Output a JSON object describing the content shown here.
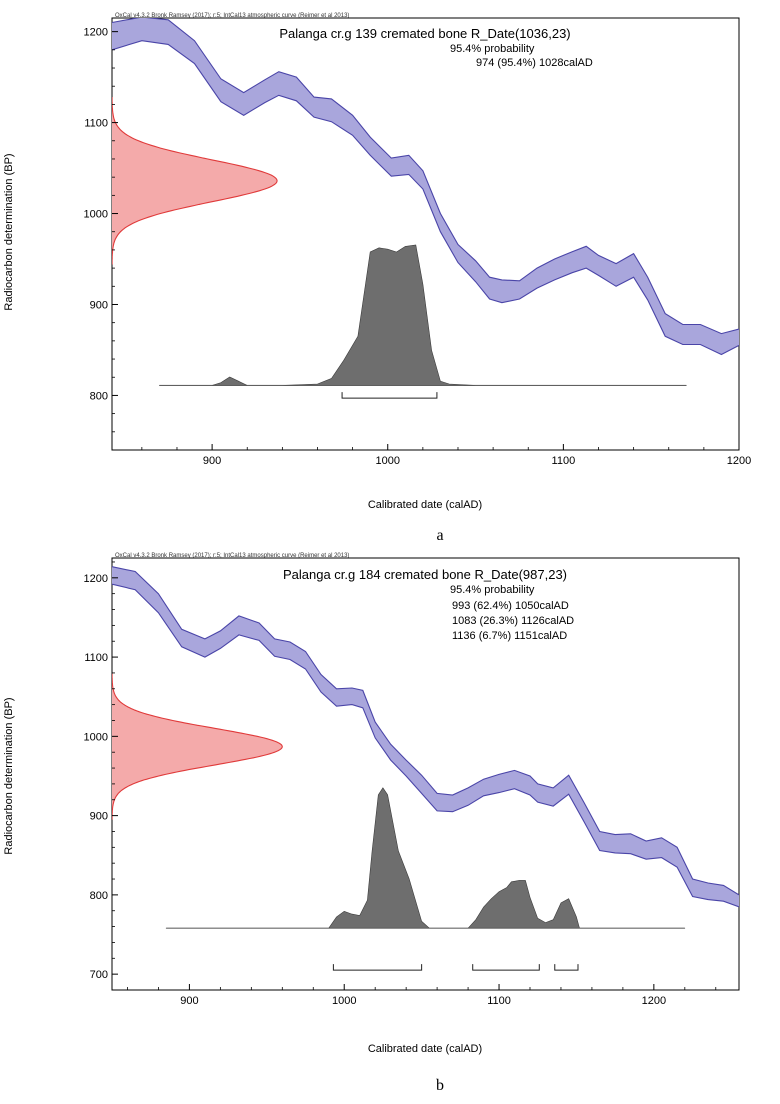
{
  "colors": {
    "curve_fill": "#a9a6dc",
    "curve_edge": "#4a45a8",
    "prior_fill": "#f4aaaa",
    "prior_edge": "#e03a3a",
    "posterior_fill": "#6e6e6e",
    "posterior_edge": "#3c3c3c",
    "frame": "#000000"
  },
  "figure": {
    "xlabel": "Calibrated date (calAD)",
    "ylabel": "Radiocarbon determination (BP)"
  },
  "chart_data": [
    {
      "type": "area",
      "panel_letter": "a",
      "header": "OxCal v4.3.2 Bronk Ramsey (2017); r:5; IntCal13 atmospheric curve (Reimer et al 2013)",
      "title": "Palanga cr.g 139 cremated bone R_Date(1036,23)",
      "probability_label": "95.4% probability",
      "ranges_text": [
        "974 (95.4%) 1028calAD"
      ],
      "ranges": [
        {
          "from": 974,
          "to": 1028,
          "prob": 95.4
        }
      ],
      "xlim": [
        843,
        1200
      ],
      "ylim": [
        740,
        1215
      ],
      "xticks": [
        900,
        1000,
        1100,
        1200
      ],
      "yticks": [
        800,
        900,
        1000,
        1100,
        1200
      ],
      "xlabel": "Calibrated date (calAD)",
      "ylabel": "Radiocarbon determination (BP)",
      "calibration_curve": {
        "x": [
          843,
          860,
          875,
          890,
          905,
          918,
          930,
          938,
          948,
          958,
          968,
          980,
          990,
          1002,
          1012,
          1020,
          1030,
          1040,
          1050,
          1058,
          1065,
          1075,
          1085,
          1095,
          1105,
          1113,
          1120,
          1130,
          1140,
          1148,
          1158,
          1168,
          1178,
          1190,
          1200
        ],
        "upper": [
          1210,
          1216,
          1213,
          1190,
          1148,
          1133,
          1147,
          1156,
          1150,
          1128,
          1126,
          1108,
          1084,
          1061,
          1064,
          1047,
          1000,
          966,
          948,
          930,
          927,
          926,
          940,
          950,
          958,
          964,
          954,
          945,
          956,
          930,
          890,
          878,
          878,
          868,
          873
        ],
        "lower": [
          1180,
          1190,
          1186,
          1165,
          1123,
          1108,
          1122,
          1130,
          1124,
          1106,
          1101,
          1086,
          1064,
          1041,
          1043,
          1027,
          980,
          946,
          925,
          906,
          902,
          906,
          918,
          927,
          935,
          940,
          932,
          920,
          930,
          905,
          865,
          856,
          856,
          845,
          855
        ]
      },
      "prior": {
        "mean": 1036,
        "sd": 23,
        "peak_x": 937
      },
      "posterior": {
        "baseline_y": 811,
        "from": 870,
        "to": 1170,
        "x": [
          870,
          900,
          905,
          910,
          915,
          920,
          940,
          960,
          968,
          975,
          983,
          990,
          995,
          1000,
          1005,
          1010,
          1016,
          1020,
          1025,
          1030,
          1035,
          1050,
          1170
        ],
        "density": [
          0,
          0,
          0.02,
          0.06,
          0.03,
          0,
          0,
          0.01,
          0.05,
          0.18,
          0.35,
          0.95,
          0.98,
          0.97,
          0.95,
          0.99,
          1.0,
          0.72,
          0.25,
          0.03,
          0.01,
          0,
          0
        ]
      },
      "range_bracket_y": 797
    },
    {
      "type": "area",
      "panel_letter": "b",
      "header": "OxCal v4.3.2 Bronk Ramsey (2017); r:5; IntCal13 atmospheric curve (Reimer et al 2013)",
      "title": "Palanga cr.g 184 cremated bone R_Date(987,23)",
      "probability_label": "95.4% probability",
      "ranges_text": [
        "993 (62.4%) 1050calAD",
        "1083 (26.3%) 1126calAD",
        "1136 (6.7%) 1151calAD"
      ],
      "ranges": [
        {
          "from": 993,
          "to": 1050,
          "prob": 62.4
        },
        {
          "from": 1083,
          "to": 1126,
          "prob": 26.3
        },
        {
          "from": 1136,
          "to": 1151,
          "prob": 6.7
        }
      ],
      "xlim": [
        850,
        1255
      ],
      "ylim": [
        680,
        1225
      ],
      "xticks": [
        900,
        1000,
        1100,
        1200
      ],
      "yticks": [
        700,
        800,
        900,
        1000,
        1100,
        1200
      ],
      "xlabel": "Calibrated date (calAD)",
      "ylabel": "Radiocarbon determination (BP)",
      "calibration_curve": {
        "x": [
          850,
          865,
          880,
          895,
          910,
          920,
          932,
          945,
          955,
          965,
          975,
          985,
          995,
          1005,
          1012,
          1020,
          1030,
          1040,
          1050,
          1060,
          1070,
          1080,
          1090,
          1100,
          1110,
          1120,
          1125,
          1135,
          1145,
          1155,
          1165,
          1175,
          1185,
          1195,
          1205,
          1215,
          1225,
          1235,
          1245,
          1255
        ],
        "upper": [
          1214,
          1208,
          1180,
          1135,
          1123,
          1133,
          1152,
          1143,
          1123,
          1119,
          1107,
          1078,
          1060,
          1061,
          1058,
          1018,
          990,
          970,
          951,
          928,
          926,
          935,
          946,
          952,
          957,
          950,
          940,
          935,
          951,
          916,
          880,
          876,
          877,
          868,
          872,
          860,
          820,
          815,
          812,
          800
        ],
        "lower": [
          1192,
          1185,
          1156,
          1113,
          1100,
          1111,
          1128,
          1121,
          1101,
          1097,
          1085,
          1056,
          1038,
          1040,
          1036,
          998,
          970,
          950,
          928,
          906,
          905,
          913,
          925,
          929,
          934,
          926,
          917,
          912,
          927,
          892,
          856,
          853,
          852,
          845,
          847,
          835,
          798,
          794,
          792,
          785
        ]
      },
      "prior": {
        "mean": 987,
        "sd": 23,
        "peak_x": 960
      },
      "posterior": {
        "baseline_y": 758,
        "from": 885,
        "to": 1220,
        "x": [
          885,
          990,
          995,
          1000,
          1005,
          1010,
          1015,
          1018,
          1022,
          1025,
          1028,
          1035,
          1042,
          1050,
          1055,
          1080,
          1085,
          1090,
          1095,
          1100,
          1105,
          1108,
          1113,
          1117,
          1120,
          1125,
          1130,
          1135,
          1140,
          1145,
          1150,
          1152,
          1220
        ],
        "density": [
          0,
          0,
          0.08,
          0.12,
          0.1,
          0.09,
          0.2,
          0.55,
          0.95,
          1.0,
          0.95,
          0.55,
          0.35,
          0.05,
          0,
          0,
          0.06,
          0.15,
          0.21,
          0.26,
          0.29,
          0.33,
          0.34,
          0.34,
          0.22,
          0.07,
          0.04,
          0.06,
          0.18,
          0.21,
          0.08,
          0,
          0
        ]
      },
      "range_bracket_y": 705
    }
  ]
}
